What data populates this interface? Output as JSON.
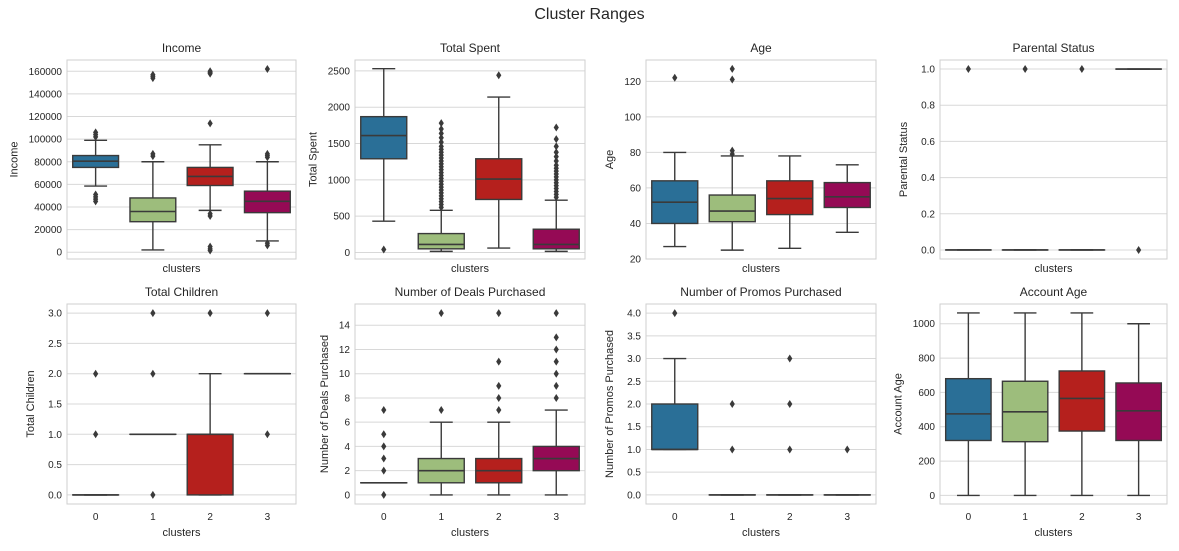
{
  "suptitle": "Cluster Ranges",
  "colors": {
    "c0": "#2a6f97",
    "c1": "#9dbd7c",
    "c2": "#b5201d",
    "c3": "#950a55",
    "grid": "#d8d8d8",
    "frame": "#cfcfcf",
    "ink": "#3a3a3a"
  },
  "chart_data": [
    {
      "type": "box",
      "title": "Income",
      "xlabel": "clusters",
      "ylabel": "Income",
      "show_xticks": false,
      "categories": [
        "0",
        "1",
        "2",
        "3"
      ],
      "ylim": [
        -6000,
        170000
      ],
      "yticks": [
        0,
        20000,
        40000,
        60000,
        80000,
        100000,
        120000,
        140000,
        160000
      ],
      "boxes": [
        {
          "whislo": 58500,
          "q1": 75000,
          "med": 80500,
          "q3": 85500,
          "whishi": 99000,
          "fliers": [
            45000,
            47000,
            49000,
            51000,
            102000,
            104000,
            106000
          ]
        },
        {
          "whislo": 2000,
          "q1": 27000,
          "med": 36000,
          "q3": 48000,
          "whishi": 80000,
          "fliers": [
            85000,
            87000,
            154000,
            155500,
            157000
          ]
        },
        {
          "whislo": 37000,
          "q1": 59000,
          "med": 67000,
          "q3": 75000,
          "whishi": 95000,
          "fliers": [
            1500,
            3000,
            5000,
            32000,
            34000,
            114000,
            158000,
            159000,
            160000
          ]
        },
        {
          "whislo": 10000,
          "q1": 35000,
          "med": 45000,
          "q3": 54000,
          "whishi": 80000,
          "fliers": [
            6000,
            8000,
            84000,
            85500,
            87000,
            162000
          ]
        }
      ]
    },
    {
      "type": "box",
      "title": "Total Spent",
      "xlabel": "clusters",
      "ylabel": "Total Spent",
      "show_xticks": false,
      "categories": [
        "0",
        "1",
        "2",
        "3"
      ],
      "ylim": [
        -90,
        2650
      ],
      "yticks": [
        0,
        500,
        1000,
        1500,
        2000,
        2500
      ],
      "boxes": [
        {
          "whislo": 430,
          "q1": 1290,
          "med": 1610,
          "q3": 1870,
          "whishi": 2530,
          "fliers": [
            40
          ]
        },
        {
          "whislo": 15,
          "q1": 50,
          "med": 110,
          "q3": 260,
          "whishi": 580,
          "fliers": [
            620,
            660,
            700,
            740,
            780,
            820,
            860,
            900,
            940,
            980,
            1020,
            1060,
            1100,
            1140,
            1180,
            1220,
            1260,
            1300,
            1340,
            1380,
            1420,
            1460,
            1520,
            1580,
            1640,
            1700,
            1780
          ]
        },
        {
          "whislo": 60,
          "q1": 730,
          "med": 1010,
          "q3": 1290,
          "whishi": 2140,
          "fliers": [
            2440
          ]
        },
        {
          "whislo": 15,
          "q1": 50,
          "med": 110,
          "q3": 320,
          "whishi": 720,
          "fliers": [
            760,
            800,
            840,
            880,
            920,
            960,
            1000,
            1040,
            1080,
            1120,
            1160,
            1200,
            1260,
            1320,
            1380,
            1460,
            1560,
            1720
          ]
        }
      ]
    },
    {
      "type": "box",
      "title": "Age",
      "xlabel": "clusters",
      "ylabel": "Age",
      "show_xticks": false,
      "categories": [
        "0",
        "1",
        "2",
        "3"
      ],
      "ylim": [
        20,
        132
      ],
      "yticks": [
        20,
        40,
        60,
        80,
        100,
        120
      ],
      "boxes": [
        {
          "whislo": 27,
          "q1": 40,
          "med": 52,
          "q3": 64,
          "whishi": 80,
          "fliers": [
            122
          ]
        },
        {
          "whislo": 25,
          "q1": 41,
          "med": 47,
          "q3": 56,
          "whishi": 78,
          "fliers": [
            79,
            81,
            121,
            127
          ]
        },
        {
          "whislo": 26,
          "q1": 45,
          "med": 54,
          "q3": 64,
          "whishi": 78,
          "fliers": []
        },
        {
          "whislo": 35,
          "q1": 49,
          "med": 55,
          "q3": 63,
          "whishi": 73,
          "fliers": []
        }
      ]
    },
    {
      "type": "box",
      "title": "Parental Status",
      "xlabel": "clusters",
      "ylabel": "Parental Status",
      "show_xticks": false,
      "categories": [
        "0",
        "1",
        "2",
        "3"
      ],
      "ylim": [
        -0.05,
        1.05
      ],
      "yticks": [
        0.0,
        0.2,
        0.4,
        0.6,
        0.8,
        1.0
      ],
      "tick_decimals": 1,
      "boxes": [
        {
          "whislo": 0,
          "q1": 0,
          "med": 0,
          "q3": 0,
          "whishi": 0,
          "fliers": [
            1
          ]
        },
        {
          "whislo": 0,
          "q1": 0,
          "med": 0,
          "q3": 0,
          "whishi": 0,
          "fliers": [
            1
          ]
        },
        {
          "whislo": 0,
          "q1": 0,
          "med": 0,
          "q3": 0,
          "whishi": 0,
          "fliers": [
            1
          ]
        },
        {
          "whislo": 1,
          "q1": 1,
          "med": 1,
          "q3": 1,
          "whishi": 1,
          "fliers": [
            0
          ]
        }
      ]
    },
    {
      "type": "box",
      "title": "Total Children",
      "xlabel": "clusters",
      "ylabel": "Total Children",
      "show_xticks": true,
      "categories": [
        "0",
        "1",
        "2",
        "3"
      ],
      "ylim": [
        -0.15,
        3.15
      ],
      "yticks": [
        0.0,
        0.5,
        1.0,
        1.5,
        2.0,
        2.5,
        3.0
      ],
      "tick_decimals": 1,
      "boxes": [
        {
          "whislo": 0,
          "q1": 0,
          "med": 0,
          "q3": 0,
          "whishi": 0,
          "fliers": [
            1,
            2
          ]
        },
        {
          "whislo": 1,
          "q1": 1,
          "med": 1,
          "q3": 1,
          "whishi": 1,
          "fliers": [
            0,
            2,
            3
          ]
        },
        {
          "whislo": 0,
          "q1": 0,
          "med": 1,
          "q3": 1,
          "whishi": 2,
          "fliers": [
            3
          ]
        },
        {
          "whislo": 2,
          "q1": 2,
          "med": 2,
          "q3": 2,
          "whishi": 2,
          "fliers": [
            1,
            3
          ]
        }
      ]
    },
    {
      "type": "box",
      "title": "Number of Deals Purchased",
      "xlabel": "clusters",
      "ylabel": "Number of Deals Purchased",
      "show_xticks": true,
      "categories": [
        "0",
        "1",
        "2",
        "3"
      ],
      "ylim": [
        -0.75,
        15.75
      ],
      "yticks": [
        0,
        2,
        4,
        6,
        8,
        10,
        12,
        14
      ],
      "boxes": [
        {
          "whislo": 1,
          "q1": 1,
          "med": 1,
          "q3": 1,
          "whishi": 1,
          "fliers": [
            0,
            2,
            3,
            4,
            5,
            7
          ]
        },
        {
          "whislo": 0,
          "q1": 1,
          "med": 2,
          "q3": 3,
          "whishi": 6,
          "fliers": [
            7,
            15
          ]
        },
        {
          "whislo": 0,
          "q1": 1,
          "med": 2,
          "q3": 3,
          "whishi": 6,
          "fliers": [
            7,
            8,
            9,
            11,
            15
          ]
        },
        {
          "whislo": 0,
          "q1": 2,
          "med": 3,
          "q3": 4,
          "whishi": 7,
          "fliers": [
            8,
            9,
            10,
            11,
            12,
            13,
            15
          ]
        }
      ]
    },
    {
      "type": "box",
      "title": "Number of Promos Purchased",
      "xlabel": "clusters",
      "ylabel": "Number of Promos Purchased",
      "show_xticks": true,
      "categories": [
        "0",
        "1",
        "2",
        "3"
      ],
      "ylim": [
        -0.2,
        4.2
      ],
      "yticks": [
        0.0,
        0.5,
        1.0,
        1.5,
        2.0,
        2.5,
        3.0,
        3.5,
        4.0
      ],
      "tick_decimals": 1,
      "boxes": [
        {
          "whislo": 1,
          "q1": 1,
          "med": 1,
          "q3": 2,
          "whishi": 3,
          "fliers": [
            4
          ]
        },
        {
          "whislo": 0,
          "q1": 0,
          "med": 0,
          "q3": 0,
          "whishi": 0,
          "fliers": [
            1,
            2
          ]
        },
        {
          "whislo": 0,
          "q1": 0,
          "med": 0,
          "q3": 0,
          "whishi": 0,
          "fliers": [
            1,
            2,
            3
          ]
        },
        {
          "whislo": 0,
          "q1": 0,
          "med": 0,
          "q3": 0,
          "whishi": 0,
          "fliers": [
            1
          ]
        }
      ]
    },
    {
      "type": "box",
      "title": "Account Age",
      "xlabel": "clusters",
      "ylabel": "Account Age",
      "show_xticks": true,
      "categories": [
        "0",
        "1",
        "2",
        "3"
      ],
      "ylim": [
        -50,
        1115
      ],
      "yticks": [
        0,
        200,
        400,
        600,
        800,
        1000
      ],
      "boxes": [
        {
          "whislo": 0,
          "q1": 320,
          "med": 475,
          "q3": 680,
          "whishi": 1063,
          "fliers": []
        },
        {
          "whislo": 0,
          "q1": 313,
          "med": 487,
          "q3": 665,
          "whishi": 1063,
          "fliers": []
        },
        {
          "whislo": 0,
          "q1": 375,
          "med": 565,
          "q3": 725,
          "whishi": 1063,
          "fliers": []
        },
        {
          "whislo": 0,
          "q1": 320,
          "med": 493,
          "q3": 655,
          "whishi": 1000,
          "fliers": []
        }
      ]
    }
  ]
}
